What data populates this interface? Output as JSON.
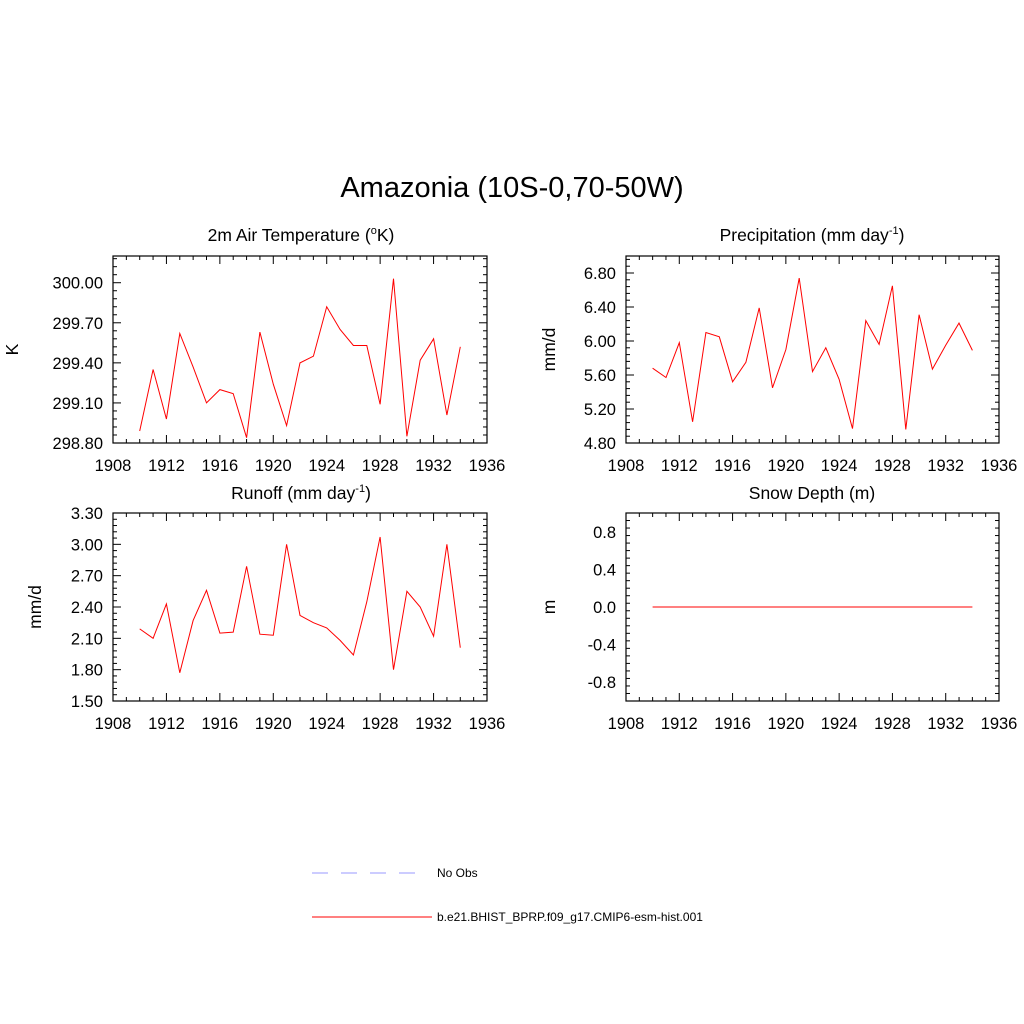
{
  "title": "Amazonia (10S-0,70-50W)",
  "legend": {
    "obs_label": "No Obs",
    "obs_color": "#9999ff",
    "model_label": "b.e21.BHIST_BPRP.f09_g17.CMIP6-esm-hist.001",
    "model_color": "#ff0000"
  },
  "panels": {
    "temperature": {
      "title_main": "2m Air Temperature (",
      "title_sup": "o",
      "title_end": "K)"
    },
    "precipitation": {
      "title_main": "Precipitation (mm day",
      "title_sup": "-1",
      "title_end": ")"
    },
    "runoff": {
      "title_main": "Runoff (mm day",
      "title_sup": "-1",
      "title_end": ")"
    },
    "snow": {
      "title_main": "Snow Depth (m)",
      "title_sup": "",
      "title_end": ""
    }
  },
  "chart_data": [
    {
      "type": "line",
      "id": "temperature",
      "ylabel": "K",
      "xlim": [
        1908,
        1936
      ],
      "ylim": [
        298.8,
        300.2
      ],
      "xticks": [
        "1908",
        "1912",
        "1916",
        "1920",
        "1924",
        "1928",
        "1932",
        "1936"
      ],
      "yticks": [
        "298.80",
        "299.10",
        "299.40",
        "299.70",
        "300.00"
      ],
      "ytick_values": [
        298.8,
        299.1,
        299.4,
        299.7,
        300.0
      ],
      "x": [
        1910,
        1911,
        1912,
        1913,
        1914,
        1915,
        1916,
        1917,
        1918,
        1919,
        1920,
        1921,
        1922,
        1923,
        1924,
        1925,
        1926,
        1927,
        1928,
        1929,
        1930,
        1931,
        1932,
        1933,
        1934
      ],
      "values": [
        298.89,
        299.35,
        298.98,
        299.62,
        299.37,
        299.1,
        299.2,
        299.17,
        298.84,
        299.63,
        299.24,
        298.93,
        299.4,
        299.45,
        299.82,
        299.65,
        299.53,
        299.53,
        299.09,
        300.03,
        298.85,
        299.42,
        299.58,
        299.01,
        299.52
      ]
    },
    {
      "type": "line",
      "id": "precipitation",
      "ylabel": "mm/d",
      "xlim": [
        1908,
        1936
      ],
      "ylim": [
        4.8,
        7.0
      ],
      "xticks": [
        "1908",
        "1912",
        "1916",
        "1920",
        "1924",
        "1928",
        "1932",
        "1936"
      ],
      "yticks": [
        "4.80",
        "5.20",
        "5.60",
        "6.00",
        "6.40",
        "6.80"
      ],
      "ytick_values": [
        4.8,
        5.2,
        5.6,
        6.0,
        6.4,
        6.8
      ],
      "x": [
        1910,
        1911,
        1912,
        1913,
        1914,
        1915,
        1916,
        1917,
        1918,
        1919,
        1920,
        1921,
        1922,
        1923,
        1924,
        1925,
        1926,
        1927,
        1928,
        1929,
        1930,
        1931,
        1932,
        1933,
        1934
      ],
      "values": [
        5.68,
        5.57,
        5.98,
        5.05,
        6.1,
        6.05,
        5.52,
        5.75,
        6.39,
        5.45,
        5.9,
        6.74,
        5.64,
        5.92,
        5.55,
        4.97,
        6.24,
        5.96,
        6.65,
        4.96,
        6.31,
        5.67,
        5.95,
        6.21,
        5.89
      ]
    },
    {
      "type": "line",
      "id": "runoff",
      "ylabel": "mm/d",
      "xlim": [
        1908,
        1936
      ],
      "ylim": [
        1.5,
        3.3
      ],
      "xticks": [
        "1908",
        "1912",
        "1916",
        "1920",
        "1924",
        "1928",
        "1932",
        "1936"
      ],
      "yticks": [
        "1.50",
        "1.80",
        "2.10",
        "2.40",
        "2.70",
        "3.00",
        "3.30"
      ],
      "ytick_values": [
        1.5,
        1.8,
        2.1,
        2.4,
        2.7,
        3.0,
        3.3
      ],
      "x": [
        1910,
        1911,
        1912,
        1913,
        1914,
        1915,
        1916,
        1917,
        1918,
        1919,
        1920,
        1921,
        1922,
        1923,
        1924,
        1925,
        1926,
        1927,
        1928,
        1929,
        1930,
        1931,
        1932,
        1933,
        1934
      ],
      "values": [
        2.19,
        2.1,
        2.43,
        1.77,
        2.27,
        2.56,
        2.15,
        2.16,
        2.79,
        2.14,
        2.13,
        3.0,
        2.32,
        2.25,
        2.2,
        2.08,
        1.94,
        2.45,
        3.07,
        1.8,
        2.55,
        2.4,
        2.12,
        3.0,
        2.01
      ]
    },
    {
      "type": "line",
      "id": "snow",
      "ylabel": "m",
      "xlim": [
        1908,
        1936
      ],
      "ylim": [
        -1.0,
        1.0
      ],
      "xticks": [
        "1908",
        "1912",
        "1916",
        "1920",
        "1924",
        "1928",
        "1932",
        "1936"
      ],
      "yticks": [
        "-0.8",
        "-0.4",
        "0.0",
        "0.4",
        "0.8"
      ],
      "ytick_values": [
        -0.8,
        -0.4,
        0.0,
        0.4,
        0.8
      ],
      "x": [
        1910,
        1911,
        1912,
        1913,
        1914,
        1915,
        1916,
        1917,
        1918,
        1919,
        1920,
        1921,
        1922,
        1923,
        1924,
        1925,
        1926,
        1927,
        1928,
        1929,
        1930,
        1931,
        1932,
        1933,
        1934
      ],
      "values": [
        0,
        0,
        0,
        0,
        0,
        0,
        0,
        0,
        0,
        0,
        0,
        0,
        0,
        0,
        0,
        0,
        0,
        0,
        0,
        0,
        0,
        0,
        0,
        0,
        0
      ]
    }
  ]
}
